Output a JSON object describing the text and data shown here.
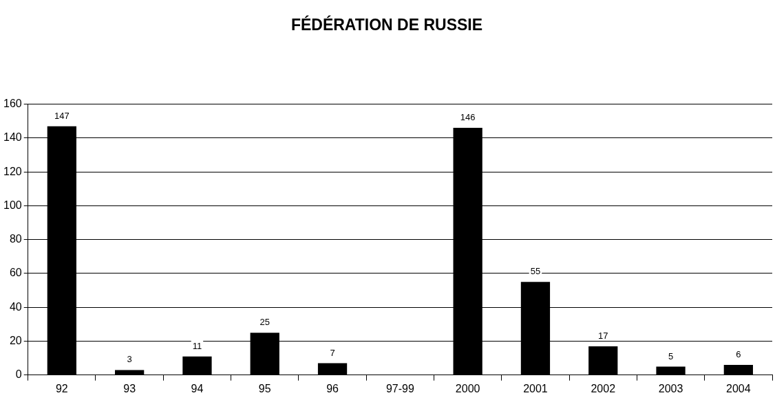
{
  "chart_data": {
    "type": "bar",
    "title": "FÉDÉRATION DE RUSSIE",
    "categories": [
      "92",
      "93",
      "94",
      "95",
      "96",
      "97-99",
      "2000",
      "2001",
      "2002",
      "2003",
      "2004"
    ],
    "values": [
      147,
      3,
      11,
      25,
      7,
      null,
      146,
      55,
      17,
      5,
      6
    ],
    "color": "#000000",
    "ylim": [
      0,
      160
    ],
    "yticks": [
      0,
      20,
      40,
      60,
      80,
      100,
      120,
      140,
      160
    ],
    "grid": "y",
    "data_labels": true
  }
}
